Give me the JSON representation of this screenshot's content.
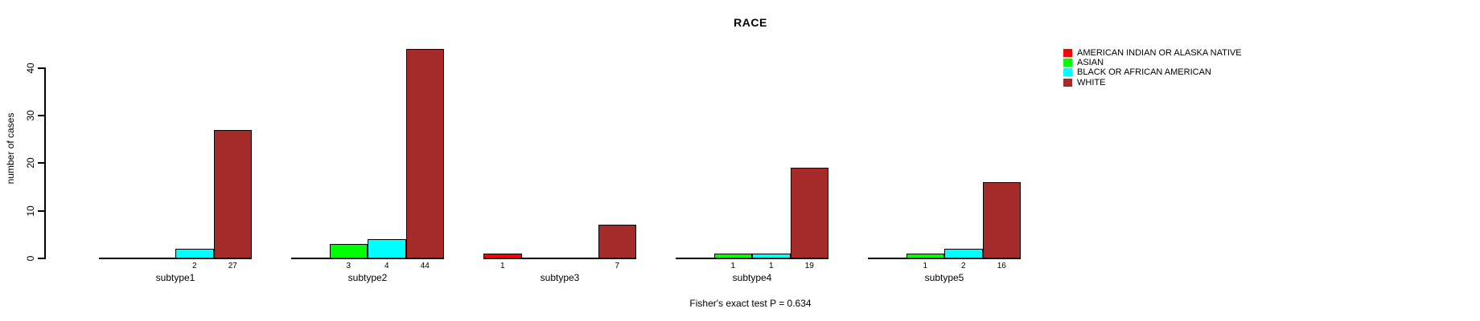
{
  "chart_data": {
    "type": "bar",
    "title": "RACE",
    "xlabel": "",
    "ylabel": "number of cases",
    "annotation": "Fisher's exact test P = 0.634",
    "axis_ticks": [
      0,
      10,
      20,
      30,
      40
    ],
    "ylim": [
      0,
      40
    ],
    "grid": false,
    "legend_position": "top-right",
    "bar_value_labels": "shown under each nonzero bar",
    "categories": [
      "subtype1",
      "subtype2",
      "subtype3",
      "subtype4",
      "subtype5"
    ],
    "series": [
      {
        "name": "AMERICAN INDIAN OR ALASKA NATIVE",
        "color": "#FF0000",
        "values": [
          0,
          0,
          1,
          0,
          0
        ]
      },
      {
        "name": "ASIAN",
        "color": "#00FF00",
        "values": [
          0,
          3,
          0,
          1,
          1
        ]
      },
      {
        "name": "BLACK OR AFRICAN AMERICAN",
        "color": "#00FFFF",
        "values": [
          2,
          4,
          0,
          1,
          2
        ]
      },
      {
        "name": "WHITE",
        "color": "#A52A2A",
        "values": [
          27,
          44,
          7,
          19,
          16
        ]
      }
    ]
  }
}
